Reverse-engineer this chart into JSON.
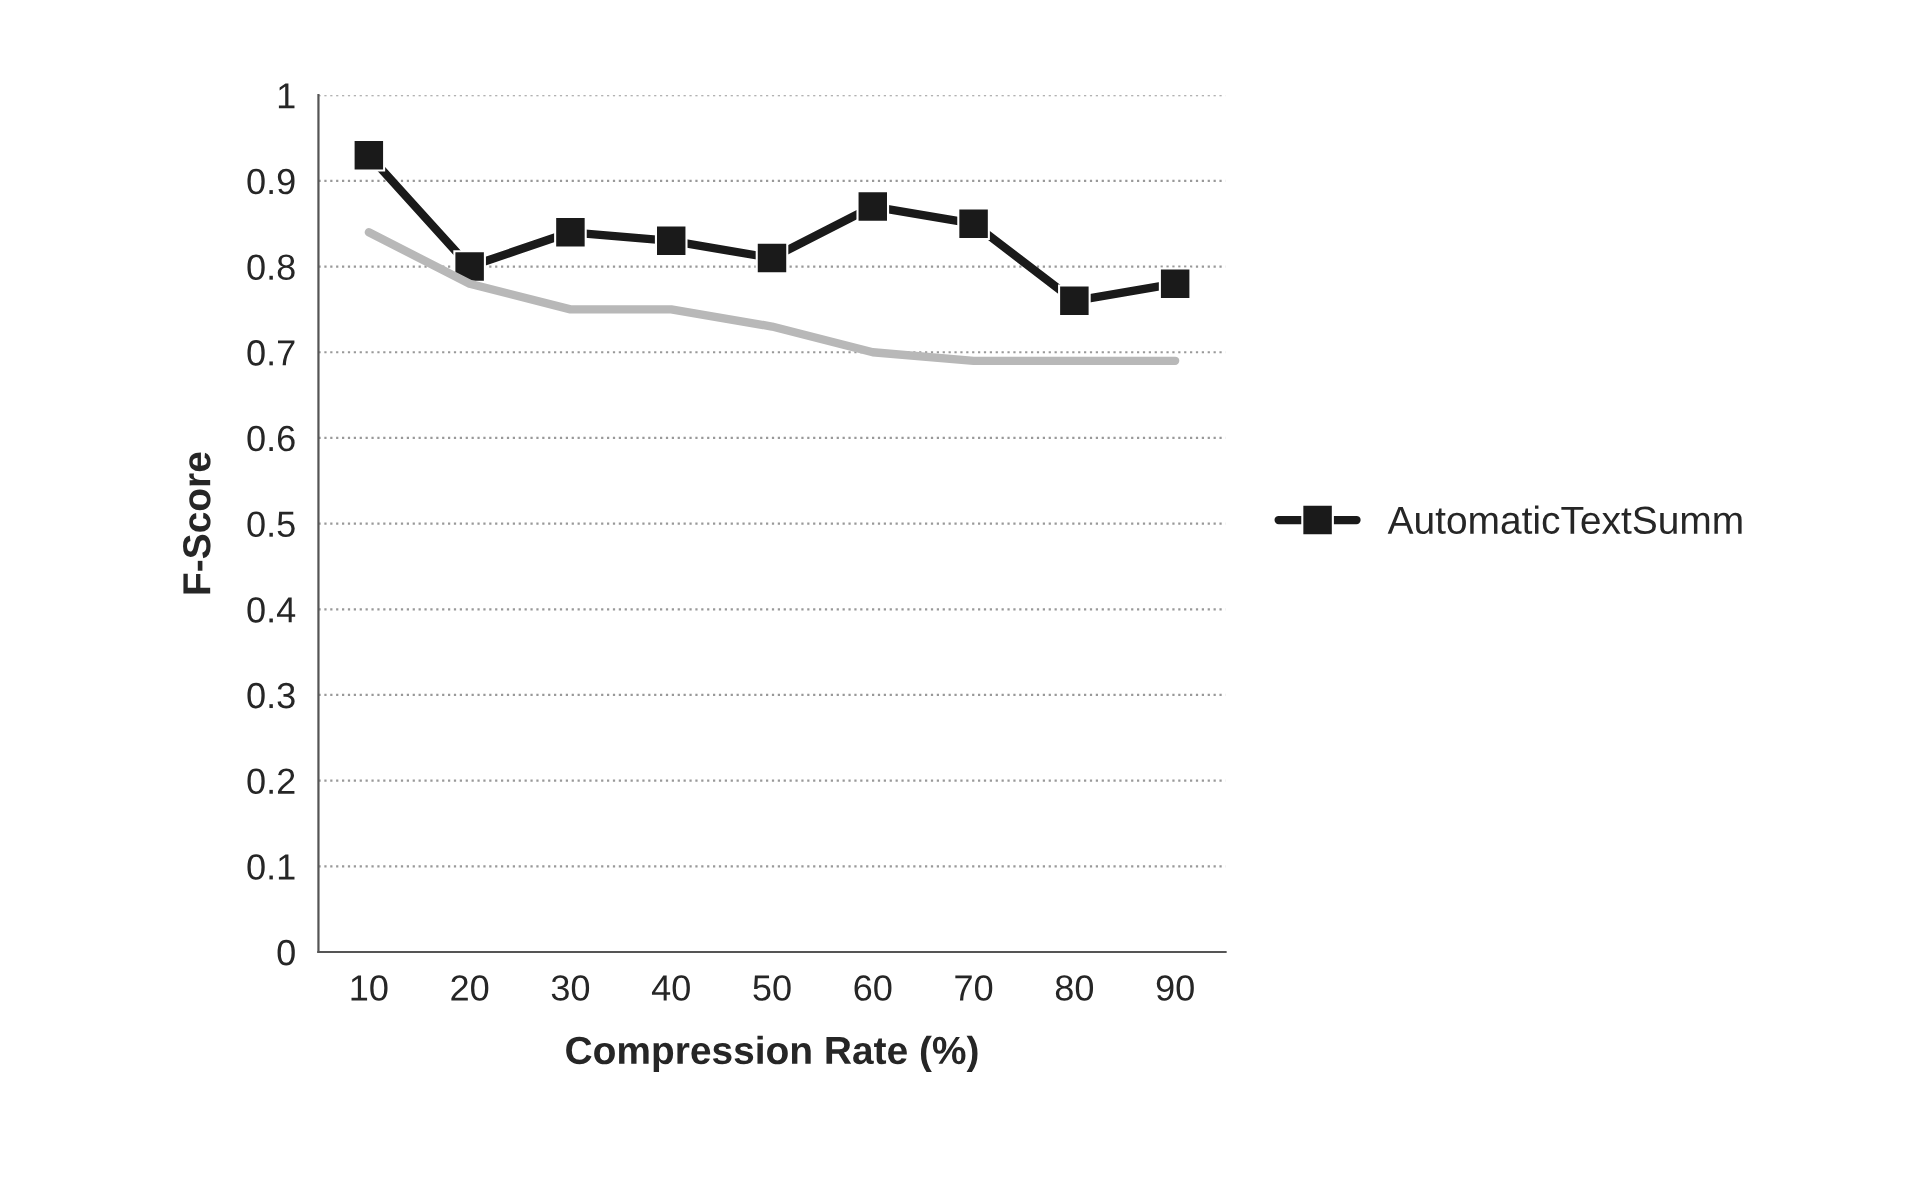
{
  "chart_data": {
    "type": "line",
    "xlabel": "Compression Rate (%)",
    "ylabel": "F-Score",
    "categories": [
      "10",
      "20",
      "30",
      "40",
      "50",
      "60",
      "70",
      "80",
      "90"
    ],
    "series": [
      {
        "name": "AutomaticTextSumm",
        "color": "#1a1a1a",
        "marker": "square",
        "values": [
          0.93,
          0.8,
          0.84,
          0.83,
          0.81,
          0.87,
          0.85,
          0.76,
          0.78
        ]
      },
      {
        "color": "#b8b8b8",
        "marker": "none",
        "values": [
          0.84,
          0.78,
          0.75,
          0.75,
          0.73,
          0.7,
          0.69,
          0.69,
          0.69
        ]
      }
    ],
    "ylim": [
      0,
      1
    ],
    "yticks": [
      0,
      0.1,
      0.2,
      0.3,
      0.4,
      0.5,
      0.6,
      0.7,
      0.8,
      0.9,
      1
    ],
    "grid": "y",
    "legend": "right"
  }
}
